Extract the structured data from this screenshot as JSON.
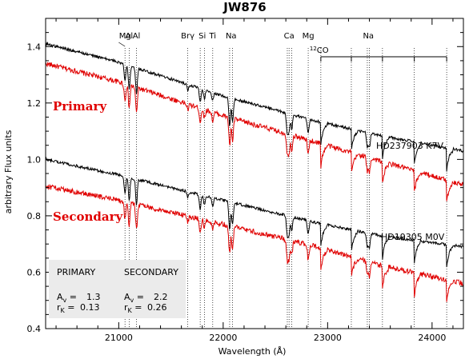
{
  "chart_data": {
    "type": "line",
    "title": "JW876",
    "xlabel": "Wavelength (Å)",
    "ylabel": "arbitrary Flux units",
    "xlim": [
      20300,
      24300
    ],
    "ylim": [
      0.4,
      1.5
    ],
    "x_ticks": [
      "21000",
      "22000",
      "23000",
      "24000"
    ],
    "y_ticks": [
      "0.4",
      "0.6",
      "0.8",
      "1.0",
      "1.2",
      "1.4"
    ],
    "grid": false,
    "series": [
      {
        "name": "Primary",
        "role": "star",
        "color": "#e00000",
        "anchor": [
          [
            20300,
            1.34
          ],
          [
            21000,
            1.275
          ],
          [
            22000,
            1.155
          ],
          [
            22900,
            1.06
          ],
          [
            23500,
            0.995
          ],
          [
            24300,
            0.91
          ]
        ]
      },
      {
        "name": "HD237903 K7V",
        "role": "template",
        "color": "#000000",
        "anchor": [
          [
            20300,
            1.41
          ],
          [
            21000,
            1.345
          ],
          [
            22000,
            1.225
          ],
          [
            22900,
            1.135
          ],
          [
            23500,
            1.085
          ],
          [
            24300,
            1.03
          ]
        ]
      },
      {
        "name": "Secondary",
        "role": "star",
        "color": "#e00000",
        "anchor": [
          [
            20300,
            0.905
          ],
          [
            21000,
            0.855
          ],
          [
            22000,
            0.77
          ],
          [
            22900,
            0.69
          ],
          [
            23500,
            0.625
          ],
          [
            24300,
            0.56
          ]
        ]
      },
      {
        "name": "HD19305 M0V",
        "role": "template",
        "color": "#000000",
        "anchor": [
          [
            20300,
            1.0
          ],
          [
            21000,
            0.945
          ],
          [
            22000,
            0.855
          ],
          [
            22900,
            0.775
          ],
          [
            23500,
            0.73
          ],
          [
            24300,
            0.69
          ]
        ]
      }
    ],
    "absorption_lines": [
      {
        "x": 21060,
        "depth": 0.06
      },
      {
        "x": 21100,
        "depth": 0.08
      },
      {
        "x": 21170,
        "depth": 0.09
      },
      {
        "x": 21661,
        "depth": 0.02
      },
      {
        "x": 21780,
        "depth": 0.05
      },
      {
        "x": 21820,
        "depth": 0.03
      },
      {
        "x": 21900,
        "depth": 0.03
      },
      {
        "x": 22062,
        "depth": 0.1
      },
      {
        "x": 22090,
        "depth": 0.08
      },
      {
        "x": 22614,
        "depth": 0.07
      },
      {
        "x": 22631,
        "depth": 0.06
      },
      {
        "x": 22657,
        "depth": 0.05
      },
      {
        "x": 22814,
        "depth": 0.05
      },
      {
        "x": 22935,
        "depth": 0.08,
        "bandhead": true
      },
      {
        "x": 23227,
        "depth": 0.08,
        "bandhead": true
      },
      {
        "x": 23380,
        "depth": 0.05
      },
      {
        "x": 23400,
        "depth": 0.05
      },
      {
        "x": 23525,
        "depth": 0.08,
        "bandhead": true
      },
      {
        "x": 23830,
        "depth": 0.08,
        "bandhead": true
      },
      {
        "x": 24140,
        "depth": 0.08,
        "bandhead": true
      }
    ],
    "line_markers": [
      {
        "label": "Mg",
        "x": 21060
      },
      {
        "label": "Al",
        "x": 21100
      },
      {
        "label": "Al",
        "x": 21170
      },
      {
        "label": "Brγ",
        "x": 21661
      },
      {
        "label": "Si",
        "x": 21800
      },
      {
        "label": "Ti",
        "x": 21900
      },
      {
        "label": "Na",
        "x": 22076
      },
      {
        "label": "Ca",
        "x": 22631
      },
      {
        "label": "Mg",
        "x": 22814
      },
      {
        "label": "Na",
        "x": 23390
      }
    ],
    "co_label": {
      "sup": "12",
      "text": "CO",
      "bandheads": [
        22935,
        23227,
        23525,
        23830,
        24140
      ]
    },
    "legend_box": {
      "col1_header": "PRIMARY",
      "col2_header": "SECONDARY",
      "av_symbol": "A",
      "av_sub": "v",
      "rk_symbol": "r",
      "rk_sub": "K",
      "primary_av": "1.3",
      "primary_rk": "0.13",
      "secondary_av": "2.2",
      "secondary_rk": "0.26"
    },
    "star_labels": {
      "primary": "Primary",
      "secondary": "Secondary"
    },
    "template_labels": {
      "primary": "HD237903 K7V",
      "secondary": "HD19305 M0V"
    }
  }
}
